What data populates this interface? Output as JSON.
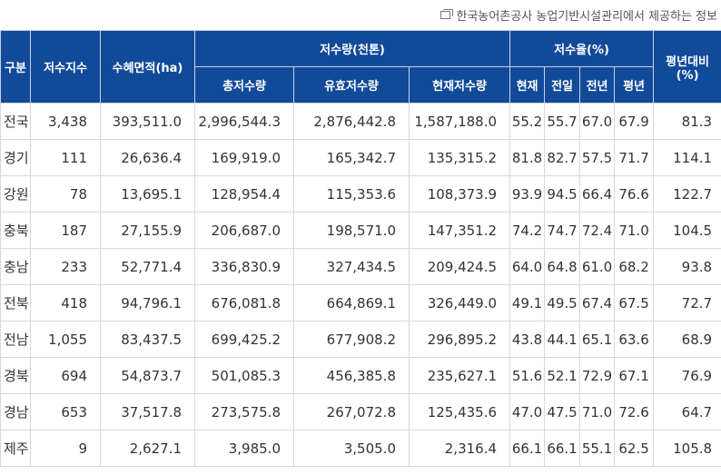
{
  "source_note": {
    "icon": "copy-icon",
    "text": "한국농어촌공사 농업기반시설관리에서 제공하는 정보"
  },
  "header": {
    "region": "구분",
    "reservoir_count": "저수지수",
    "irrigated_area": "수혜면적(ha)",
    "storage_group": "저수량(천톤)",
    "total_storage": "총저수량",
    "effective_storage": "유효저수량",
    "current_storage": "현재저수량",
    "rate_group": "저수율(%)",
    "rate_current": "현재",
    "rate_prev_day": "전일",
    "rate_prev_year": "전년",
    "rate_normal": "평년",
    "vs_normal_line1": "평년대비",
    "vs_normal_line2": "(%)"
  },
  "rows": [
    {
      "region": "전국",
      "count": "3,438",
      "area": "393,511.0",
      "total": "2,996,544.3",
      "effective": "2,876,442.8",
      "current": "1,587,188.0",
      "rate_cur": "55.2",
      "rate_prev_day": "55.7",
      "rate_prev_year": "67.0",
      "rate_normal": "67.9",
      "vs_normal": "81.3"
    },
    {
      "region": "경기",
      "count": "111",
      "area": "26,636.4",
      "total": "169,919.0",
      "effective": "165,342.7",
      "current": "135,315.2",
      "rate_cur": "81.8",
      "rate_prev_day": "82.7",
      "rate_prev_year": "57.5",
      "rate_normal": "71.7",
      "vs_normal": "114.1"
    },
    {
      "region": "강원",
      "count": "78",
      "area": "13,695.1",
      "total": "128,954.4",
      "effective": "115,353.6",
      "current": "108,373.9",
      "rate_cur": "93.9",
      "rate_prev_day": "94.5",
      "rate_prev_year": "66.4",
      "rate_normal": "76.6",
      "vs_normal": "122.7"
    },
    {
      "region": "충북",
      "count": "187",
      "area": "27,155.9",
      "total": "206,687.0",
      "effective": "198,571.0",
      "current": "147,351.2",
      "rate_cur": "74.2",
      "rate_prev_day": "74.7",
      "rate_prev_year": "72.4",
      "rate_normal": "71.0",
      "vs_normal": "104.5"
    },
    {
      "region": "충남",
      "count": "233",
      "area": "52,771.4",
      "total": "336,830.9",
      "effective": "327,434.5",
      "current": "209,424.5",
      "rate_cur": "64.0",
      "rate_prev_day": "64.8",
      "rate_prev_year": "61.0",
      "rate_normal": "68.2",
      "vs_normal": "93.8"
    },
    {
      "region": "전북",
      "count": "418",
      "area": "94,796.1",
      "total": "676,081.8",
      "effective": "664,869.1",
      "current": "326,449.0",
      "rate_cur": "49.1",
      "rate_prev_day": "49.5",
      "rate_prev_year": "67.4",
      "rate_normal": "67.5",
      "vs_normal": "72.7"
    },
    {
      "region": "전남",
      "count": "1,055",
      "area": "83,437.5",
      "total": "699,425.2",
      "effective": "677,908.2",
      "current": "296,895.2",
      "rate_cur": "43.8",
      "rate_prev_day": "44.1",
      "rate_prev_year": "65.1",
      "rate_normal": "63.6",
      "vs_normal": "68.9"
    },
    {
      "region": "경북",
      "count": "694",
      "area": "54,873.7",
      "total": "501,085.3",
      "effective": "456,385.8",
      "current": "235,627.1",
      "rate_cur": "51.6",
      "rate_prev_day": "52.1",
      "rate_prev_year": "72.9",
      "rate_normal": "67.1",
      "vs_normal": "76.9"
    },
    {
      "region": "경남",
      "count": "653",
      "area": "37,517.8",
      "total": "273,575.8",
      "effective": "267,072.8",
      "current": "125,435.6",
      "rate_cur": "47.0",
      "rate_prev_day": "47.5",
      "rate_prev_year": "71.0",
      "rate_normal": "72.6",
      "vs_normal": "64.7"
    },
    {
      "region": "제주",
      "count": "9",
      "area": "2,627.1",
      "total": "3,985.0",
      "effective": "3,505.0",
      "current": "2,316.4",
      "rate_cur": "66.1",
      "rate_prev_day": "66.1",
      "rate_prev_year": "55.1",
      "rate_normal": "62.5",
      "vs_normal": "105.8"
    }
  ],
  "colors": {
    "header_bg": "#124a9a",
    "header_text": "#ffffff",
    "cell_text": "#333333"
  }
}
